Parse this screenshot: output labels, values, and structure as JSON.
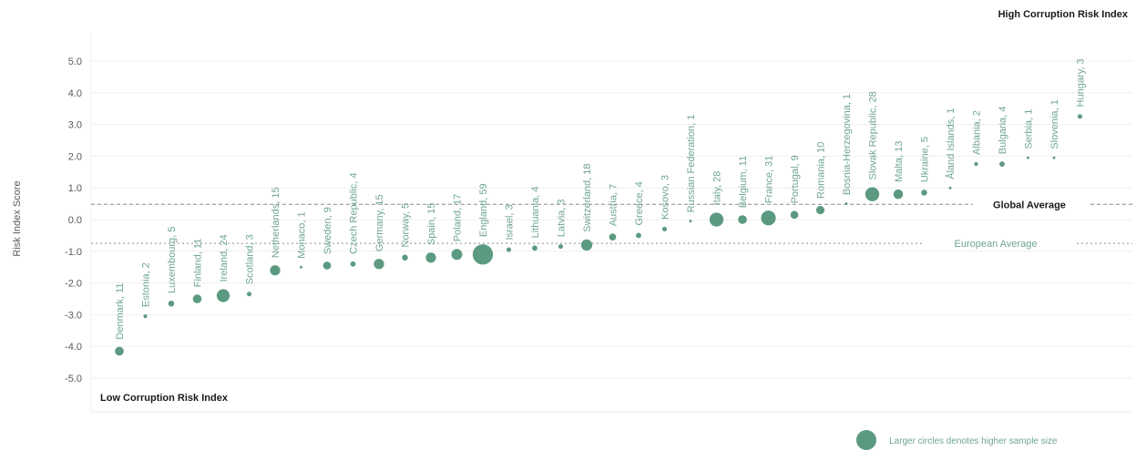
{
  "chart_data": {
    "type": "scatter",
    "title": "",
    "ylabel": "Risk Index Score",
    "xlabel": "",
    "ylim": [
      -5.0,
      5.0
    ],
    "yticks": [
      "5.0",
      "4.0",
      "3.0",
      "2.0",
      "1.0",
      "0.0",
      "-1.0",
      "-2.0",
      "-3.0",
      "-4.0",
      "-5.0"
    ],
    "yticks_values": [
      5,
      4,
      3,
      2,
      1,
      0,
      -1,
      -2,
      -3,
      -4,
      -5
    ],
    "grid": true,
    "corner_top_right": "High Corruption Risk Index",
    "corner_bottom_left": "Low Corruption Risk Index",
    "reference_lines": [
      {
        "name": "Global Average",
        "value": 0.48,
        "color": "#8c8c8c"
      },
      {
        "name": "European Average",
        "value": -0.75,
        "color": "#8c8c8c"
      }
    ],
    "legend": {
      "label": "Larger circles denotes higher sample size",
      "placement": "bottom-right"
    },
    "point_color": "#5b9a80",
    "label_color": "#6fa592",
    "points": [
      {
        "label": "Denmark, 11",
        "y": -4.15,
        "n": 11
      },
      {
        "label": "Estonia, 2",
        "y": -3.05,
        "n": 2
      },
      {
        "label": "Luxembourg, 5",
        "y": -2.65,
        "n": 5
      },
      {
        "label": "Finland, 11",
        "y": -2.5,
        "n": 11
      },
      {
        "label": "Ireland, 24",
        "y": -2.4,
        "n": 24
      },
      {
        "label": "Scotland, 3",
        "y": -2.35,
        "n": 3
      },
      {
        "label": "Netherlands, 15",
        "y": -1.6,
        "n": 15
      },
      {
        "label": "Monaco, 1",
        "y": -1.5,
        "n": 1
      },
      {
        "label": "Sweden, 9",
        "y": -1.45,
        "n": 9
      },
      {
        "label": "Czech Republic, 4",
        "y": -1.4,
        "n": 4
      },
      {
        "label": "Germany, 15",
        "y": -1.4,
        "n": 15
      },
      {
        "label": "Norway, 5",
        "y": -1.2,
        "n": 5
      },
      {
        "label": "Spain, 15",
        "y": -1.2,
        "n": 15
      },
      {
        "label": "Poland, 17",
        "y": -1.1,
        "n": 17
      },
      {
        "label": "England, 59",
        "y": -1.1,
        "n": 59
      },
      {
        "label": "Israel, 3",
        "y": -0.95,
        "n": 3
      },
      {
        "label": "Lithuania, 4",
        "y": -0.9,
        "n": 4
      },
      {
        "label": "Latvia, 3",
        "y": -0.85,
        "n": 3
      },
      {
        "label": "Switzerland, 18",
        "y": -0.8,
        "n": 18
      },
      {
        "label": "Austria, 7",
        "y": -0.55,
        "n": 7
      },
      {
        "label": "Greece, 4",
        "y": -0.5,
        "n": 4
      },
      {
        "label": "Kosovo, 3",
        "y": -0.3,
        "n": 3
      },
      {
        "label": "Russian Federation, 1",
        "y": -0.05,
        "n": 1
      },
      {
        "label": "Italy, 28",
        "y": 0.0,
        "n": 28
      },
      {
        "label": "Belgium, 11",
        "y": 0.0,
        "n": 11
      },
      {
        "label": "France, 31",
        "y": 0.05,
        "n": 31
      },
      {
        "label": "Portugal, 9",
        "y": 0.15,
        "n": 9
      },
      {
        "label": "Romania, 10",
        "y": 0.3,
        "n": 10
      },
      {
        "label": "Bosnia-Herzegovina, 1",
        "y": 0.5,
        "n": 1
      },
      {
        "label": "Slovak Republic, 28",
        "y": 0.8,
        "n": 28
      },
      {
        "label": "Malta, 13",
        "y": 0.8,
        "n": 13
      },
      {
        "label": "Ukraine, 5",
        "y": 0.85,
        "n": 5
      },
      {
        "label": "Åland Islands, 1",
        "y": 1.0,
        "n": 1
      },
      {
        "label": "Albania, 2",
        "y": 1.75,
        "n": 2
      },
      {
        "label": "Bulgaria, 4",
        "y": 1.75,
        "n": 4
      },
      {
        "label": "Serbia, 1",
        "y": 1.95,
        "n": 1
      },
      {
        "label": "Slovenia, 1",
        "y": 1.95,
        "n": 1
      },
      {
        "label": "Hungary, 3",
        "y": 3.25,
        "n": 3
      }
    ]
  }
}
